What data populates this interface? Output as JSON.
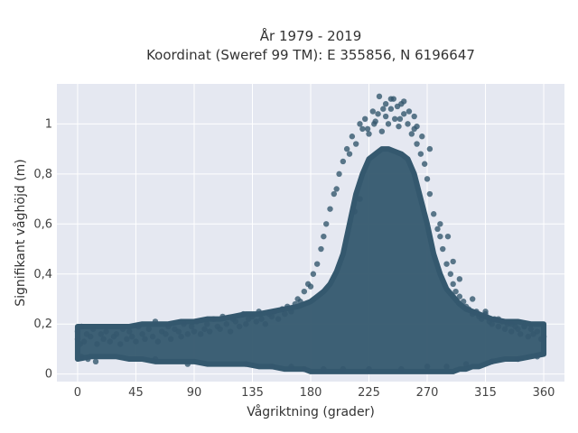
{
  "chart_data": {
    "type": "scatter",
    "title_line1": "År 1979 - 2019",
    "title_line2": "Koordinat (Sweref 99 TM): E 355856, N 6196647",
    "xlabel": "Vågriktning (grader)",
    "ylabel": "Signifikant våghöjd (m)",
    "xlim": [
      -16,
      376
    ],
    "ylim": [
      -0.03,
      1.16
    ],
    "xticks": [
      0,
      45,
      90,
      135,
      180,
      225,
      270,
      315,
      360
    ],
    "xtick_labels": [
      "0",
      "45",
      "90",
      "135",
      "180",
      "225",
      "270",
      "315",
      "360"
    ],
    "yticks": [
      0,
      0.2,
      0.4,
      0.6,
      0.8,
      1
    ],
    "ytick_labels": [
      "0",
      "0,2",
      "0,4",
      "0,6",
      "0,8",
      "1"
    ],
    "grid": true,
    "marker_color": "#34586e",
    "background_color": "#e5e8f1",
    "x": [
      0,
      0,
      2,
      3,
      5,
      7,
      10,
      12,
      15,
      18,
      20,
      22,
      25,
      28,
      30,
      33,
      35,
      38,
      40,
      42,
      45,
      47,
      50,
      52,
      55,
      58,
      60,
      62,
      65,
      68,
      70,
      72,
      75,
      78,
      80,
      82,
      85,
      88,
      90,
      92,
      95,
      98,
      100,
      102,
      105,
      108,
      110,
      112,
      115,
      118,
      120,
      122,
      125,
      128,
      130,
      132,
      135,
      138,
      140,
      142,
      145,
      148,
      150,
      152,
      155,
      158,
      160,
      162,
      165,
      168,
      170,
      172,
      175,
      178,
      180,
      182,
      185,
      188,
      190,
      192,
      195,
      198,
      200,
      202,
      205,
      208,
      210,
      212,
      215,
      218,
      220,
      222,
      225,
      228,
      230,
      232,
      235,
      238,
      240,
      242,
      245,
      248,
      250,
      252,
      255,
      258,
      260,
      262,
      265,
      268,
      270,
      272,
      275,
      278,
      280,
      282,
      285,
      288,
      290,
      292,
      295,
      298,
      300,
      302,
      305,
      308,
      310,
      312,
      315,
      318,
      320,
      322,
      325,
      328,
      330,
      332,
      335,
      338,
      340,
      342,
      345,
      348,
      350,
      352,
      355,
      358,
      360,
      233,
      238,
      244,
      247,
      252,
      256,
      260,
      229,
      224,
      236,
      242,
      249,
      262,
      266,
      272,
      218,
      214,
      280,
      286,
      290,
      295,
      305,
      315,
      325,
      335,
      345,
      3,
      8,
      14,
      60,
      85,
      130,
      150,
      165,
      175,
      190,
      205,
      225,
      250,
      270,
      285,
      300,
      320,
      340,
      355
    ],
    "y": [
      0.14,
      0.17,
      0.12,
      0.19,
      0.13,
      0.16,
      0.15,
      0.18,
      0.12,
      0.16,
      0.14,
      0.17,
      0.13,
      0.15,
      0.16,
      0.12,
      0.18,
      0.14,
      0.17,
      0.15,
      0.13,
      0.19,
      0.16,
      0.14,
      0.18,
      0.15,
      0.21,
      0.13,
      0.17,
      0.16,
      0.19,
      0.14,
      0.18,
      0.17,
      0.15,
      0.2,
      0.16,
      0.19,
      0.17,
      0.21,
      0.16,
      0.18,
      0.2,
      0.17,
      0.22,
      0.19,
      0.18,
      0.23,
      0.2,
      0.17,
      0.22,
      0.21,
      0.19,
      0.24,
      0.2,
      0.22,
      0.23,
      0.21,
      0.25,
      0.22,
      0.2,
      0.24,
      0.23,
      0.25,
      0.22,
      0.26,
      0.24,
      0.27,
      0.25,
      0.28,
      0.3,
      0.29,
      0.33,
      0.36,
      0.35,
      0.4,
      0.44,
      0.5,
      0.55,
      0.6,
      0.66,
      0.72,
      0.74,
      0.8,
      0.85,
      0.9,
      0.88,
      0.95,
      0.92,
      1.0,
      0.98,
      1.02,
      0.96,
      1.05,
      1.01,
      1.04,
      0.97,
      1.03,
      1.0,
      1.06,
      1.02,
      0.99,
      1.08,
      1.04,
      1.0,
      0.96,
      0.98,
      0.92,
      0.88,
      0.84,
      0.78,
      0.72,
      0.64,
      0.58,
      0.55,
      0.5,
      0.44,
      0.4,
      0.36,
      0.33,
      0.31,
      0.29,
      0.27,
      0.26,
      0.24,
      0.25,
      0.23,
      0.22,
      0.24,
      0.21,
      0.2,
      0.22,
      0.19,
      0.21,
      0.18,
      0.2,
      0.17,
      0.19,
      0.18,
      0.16,
      0.19,
      0.15,
      0.18,
      0.16,
      0.17,
      0.14,
      0.15,
      1.11,
      1.08,
      1.1,
      1.07,
      1.09,
      1.05,
      1.03,
      1.0,
      0.98,
      1.06,
      1.1,
      1.02,
      0.99,
      0.95,
      0.9,
      0.7,
      0.65,
      0.6,
      0.55,
      0.45,
      0.38,
      0.3,
      0.25,
      0.22,
      0.2,
      0.19,
      0.07,
      0.06,
      0.05,
      0.06,
      0.04,
      0.04,
      0.03,
      0.03,
      0.02,
      0.02,
      0.02,
      0.02,
      0.02,
      0.03,
      0.03,
      0.04,
      0.05,
      0.06,
      0.07
    ],
    "bands": [
      {
        "x": [
          0,
          10,
          20,
          30,
          40,
          50,
          60,
          70,
          80,
          90,
          100,
          110,
          120,
          130,
          140,
          150,
          160,
          170,
          175,
          180,
          185,
          190,
          195,
          200,
          205,
          210,
          215,
          220,
          225,
          230,
          235,
          240,
          245,
          250,
          255,
          260,
          265,
          270,
          275,
          280,
          285,
          290,
          295,
          300,
          305,
          310,
          315,
          320,
          330,
          340,
          350,
          360
        ],
        "y_low": [
          0.06,
          0.07,
          0.07,
          0.07,
          0.06,
          0.06,
          0.05,
          0.05,
          0.05,
          0.05,
          0.04,
          0.04,
          0.04,
          0.04,
          0.03,
          0.03,
          0.02,
          0.02,
          0.02,
          0.01,
          0.01,
          0.01,
          0.01,
          0.01,
          0.01,
          0.01,
          0.01,
          0.01,
          0.01,
          0.01,
          0.01,
          0.01,
          0.01,
          0.01,
          0.01,
          0.01,
          0.01,
          0.01,
          0.01,
          0.01,
          0.01,
          0.01,
          0.02,
          0.02,
          0.03,
          0.03,
          0.04,
          0.05,
          0.06,
          0.06,
          0.07,
          0.08
        ],
        "y_high": [
          0.19,
          0.19,
          0.19,
          0.19,
          0.19,
          0.2,
          0.2,
          0.2,
          0.21,
          0.21,
          0.22,
          0.22,
          0.23,
          0.24,
          0.24,
          0.25,
          0.26,
          0.27,
          0.28,
          0.29,
          0.31,
          0.33,
          0.36,
          0.41,
          0.48,
          0.6,
          0.72,
          0.8,
          0.86,
          0.88,
          0.9,
          0.9,
          0.89,
          0.88,
          0.86,
          0.8,
          0.7,
          0.6,
          0.48,
          0.4,
          0.34,
          0.31,
          0.28,
          0.26,
          0.25,
          0.24,
          0.23,
          0.22,
          0.21,
          0.21,
          0.2,
          0.2
        ]
      }
    ]
  }
}
